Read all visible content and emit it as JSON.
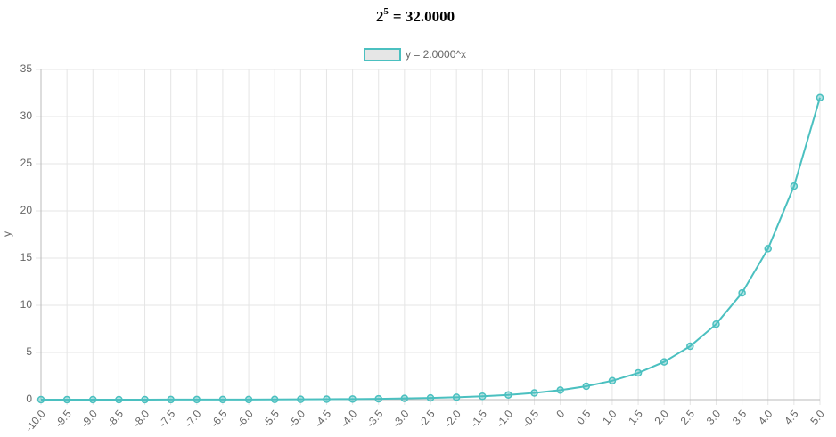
{
  "chart_data": {
    "type": "line",
    "title": {
      "base": "2",
      "exponent": "5",
      "result": "= 32.0000"
    },
    "y_label": "y",
    "categories": [
      "-10.0",
      "-9.5",
      "-9.0",
      "-8.5",
      "-8.0",
      "-7.5",
      "-7.0",
      "-6.5",
      "-6.0",
      "-5.5",
      "-5.0",
      "-4.5",
      "-4.0",
      "-3.5",
      "-3.0",
      "-2.5",
      "-2.0",
      "-1.5",
      "-1.0",
      "-0.5",
      "0",
      "0.5",
      "1.0",
      "1.5",
      "2.0",
      "2.5",
      "3.0",
      "3.5",
      "4.0",
      "4.5",
      "5.0"
    ],
    "series": [
      {
        "name": "y = 2.0000^x",
        "color": "#4bc0c0",
        "values": [
          0.001,
          0.001,
          0.002,
          0.003,
          0.004,
          0.006,
          0.008,
          0.011,
          0.016,
          0.022,
          0.031,
          0.044,
          0.063,
          0.088,
          0.125,
          0.177,
          0.25,
          0.354,
          0.5,
          0.707,
          1,
          1.414,
          2,
          2.828,
          4,
          5.657,
          8,
          11.314,
          16,
          22.627,
          32
        ]
      }
    ],
    "ylim": [
      0,
      35
    ],
    "yticks": [
      0,
      5,
      10,
      15,
      20,
      25,
      30,
      35
    ],
    "grid": true,
    "legend": "top"
  }
}
